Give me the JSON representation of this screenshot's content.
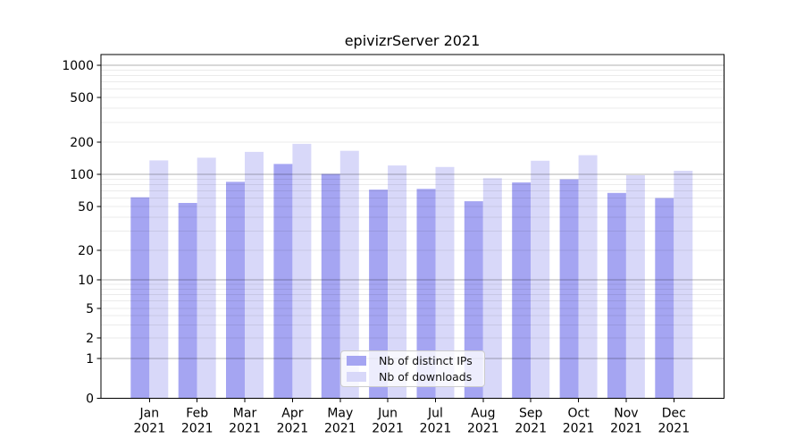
{
  "chart_data": {
    "type": "bar",
    "title": "epivizrServer 2021",
    "categories": [
      "Jan 2021",
      "Feb 2021",
      "Mar 2021",
      "Apr 2021",
      "May 2021",
      "Jun 2021",
      "Jul 2021",
      "Aug 2021",
      "Sep 2021",
      "Oct 2021",
      "Nov 2021",
      "Dec 2021"
    ],
    "series": [
      {
        "name": "Nb of distinct IPs",
        "color": "#a5a5f2",
        "values": [
          61,
          54,
          85,
          125,
          101,
          72,
          73,
          56,
          84,
          90,
          67,
          60
        ]
      },
      {
        "name": "Nb of downloads",
        "color": "#d8d8f9",
        "values": [
          135,
          143,
          162,
          193,
          166,
          121,
          117,
          92,
          134,
          151,
          98,
          108
        ]
      }
    ],
    "y_ticks": [
      0,
      1,
      2,
      5,
      10,
      20,
      50,
      100,
      200,
      500,
      1000
    ],
    "y_scale": "log (linear below 1)",
    "ylim": [
      0,
      1300
    ],
    "xlabel": "",
    "ylabel": "",
    "grid": true,
    "legend_position": "lower-center",
    "colors": {
      "major_grid": "rgba(0,0,0,0.30)",
      "minor_grid": "rgba(0,0,0,0.08)",
      "spine": "#000000"
    }
  }
}
